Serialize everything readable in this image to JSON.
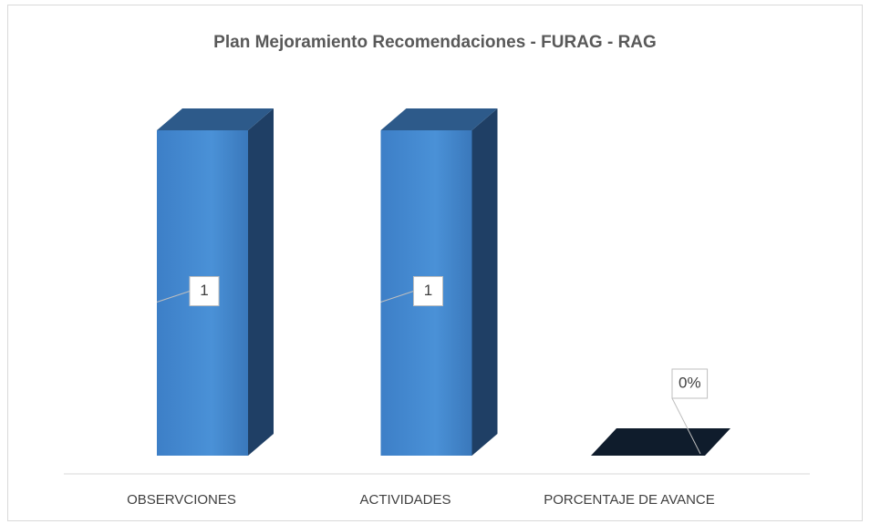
{
  "chart_data": {
    "type": "bar3d",
    "title": "Plan Mejoramiento Recomendaciones - FURAG - RAG",
    "categories": [
      "OBSERVCIONES",
      "ACTIVIDADES",
      "PORCENTAJE DE AVANCE"
    ],
    "values": [
      1,
      1,
      0
    ],
    "value_labels": [
      "1",
      "1",
      "0%"
    ],
    "color": "#4389d0"
  }
}
